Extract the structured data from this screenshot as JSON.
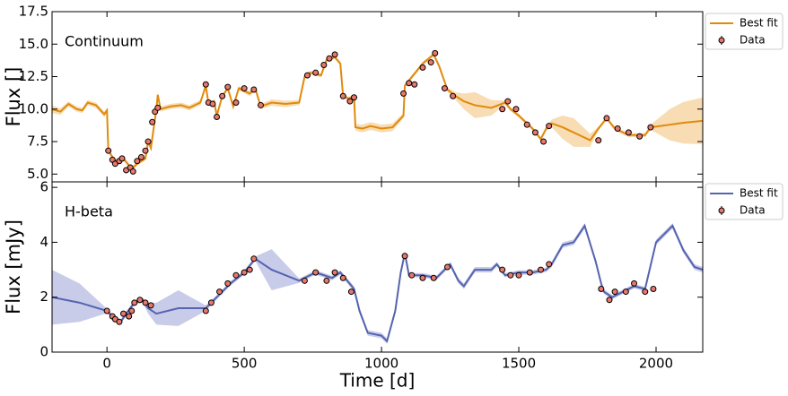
{
  "chart_data": [
    {
      "type": "line",
      "annotation": "Continuum",
      "ylabel": "Flux []",
      "ylim": [
        4.4,
        17.5
      ],
      "yticks": [
        {
          "value": 5.0,
          "label": "5.0"
        },
        7.5,
        {
          "value": 10.0,
          "label": "10.0"
        },
        12.5,
        {
          "value": 15.0,
          "label": "15.0"
        },
        17.5
      ],
      "xlim": [
        -200,
        2170
      ],
      "legend": "outside right",
      "series": [
        {
          "name": "Best fit",
          "color": "#e08a0b",
          "band_color": "#f5c98a",
          "x": [
            -200,
            -170,
            -140,
            -110,
            -90,
            -70,
            -40,
            -10,
            0,
            5,
            30,
            60,
            90,
            110,
            140,
            150,
            160,
            170,
            180,
            185,
            195,
            230,
            270,
            300,
            340,
            360,
            370,
            390,
            400,
            420,
            440,
            460,
            480,
            520,
            540,
            560,
            600,
            650,
            700,
            720,
            740,
            780,
            800,
            830,
            850,
            860,
            880,
            900,
            905,
            930,
            960,
            1000,
            1040,
            1080,
            1085,
            1100,
            1150,
            1190,
            1210,
            1240,
            1270,
            1300,
            1340,
            1400,
            1450,
            1470,
            1500,
            1550,
            1580,
            1600,
            1620,
            1660,
            1700,
            1760,
            1790,
            1820,
            1850,
            1900,
            1960,
            1980,
            2050,
            2100,
            2170
          ],
          "values": [
            10.0,
            9.8,
            10.4,
            10.0,
            9.9,
            10.5,
            10.3,
            9.6,
            9.9,
            6.8,
            6.0,
            6.2,
            5.4,
            5.8,
            6.2,
            7.5,
            7.0,
            8.5,
            10.0,
            11.1,
            10.0,
            10.2,
            10.3,
            10.1,
            10.5,
            11.8,
            10.4,
            10.6,
            9.5,
            11.0,
            11.6,
            10.2,
            11.6,
            11.2,
            11.6,
            10.2,
            10.5,
            10.4,
            10.5,
            12.5,
            12.8,
            12.6,
            13.8,
            14.0,
            13.5,
            11.0,
            10.8,
            11.0,
            8.6,
            8.5,
            8.7,
            8.5,
            8.6,
            9.5,
            11.8,
            12.2,
            13.5,
            14.2,
            13.3,
            11.5,
            11.0,
            10.6,
            10.3,
            10.1,
            10.5,
            10.0,
            9.5,
            8.5,
            7.7,
            8.5,
            8.9,
            8.6,
            8.2,
            7.6,
            8.5,
            9.3,
            8.5,
            8.0,
            8.0,
            8.6,
            8.8,
            8.95,
            9.1
          ],
          "errors": [
            0.3,
            0.25,
            0.2,
            0.2,
            0.2,
            0.2,
            0.2,
            0.2,
            0.2,
            0.15,
            0.15,
            0.15,
            0.15,
            0.15,
            0.15,
            0.15,
            0.15,
            0.2,
            0.2,
            0.2,
            0.2,
            0.2,
            0.2,
            0.2,
            0.2,
            0.15,
            0.15,
            0.15,
            0.15,
            0.15,
            0.15,
            0.15,
            0.15,
            0.2,
            0.2,
            0.2,
            0.25,
            0.25,
            0.2,
            0.15,
            0.15,
            0.15,
            0.15,
            0.15,
            0.15,
            0.15,
            0.15,
            0.15,
            0.25,
            0.3,
            0.3,
            0.3,
            0.3,
            0.2,
            0.15,
            0.15,
            0.15,
            0.15,
            0.15,
            0.15,
            0.3,
            0.6,
            1.0,
            0.6,
            0.15,
            0.15,
            0.15,
            0.15,
            0.15,
            0.15,
            0.3,
            0.9,
            1.1,
            0.5,
            0.15,
            0.15,
            0.15,
            0.15,
            0.15,
            0.2,
            1.2,
            1.6,
            1.8
          ]
        },
        {
          "name": "Data",
          "color": "#e8786c",
          "x": [
            5,
            20,
            30,
            45,
            55,
            70,
            85,
            95,
            110,
            125,
            140,
            150,
            165,
            175,
            185,
            360,
            370,
            385,
            400,
            420,
            440,
            470,
            500,
            535,
            560,
            730,
            760,
            790,
            810,
            830,
            860,
            885,
            900,
            1080,
            1100,
            1120,
            1150,
            1180,
            1195,
            1230,
            1260,
            1440,
            1460,
            1490,
            1530,
            1560,
            1590,
            1610,
            1790,
            1820,
            1860,
            1900,
            1940,
            1980
          ],
          "values": [
            6.8,
            6.1,
            5.8,
            6.0,
            6.2,
            5.3,
            5.5,
            5.2,
            6.0,
            6.3,
            6.8,
            7.5,
            9.0,
            9.8,
            10.1,
            11.9,
            10.5,
            10.4,
            9.4,
            11.0,
            11.7,
            10.5,
            11.6,
            11.5,
            10.3,
            12.6,
            12.8,
            13.4,
            13.9,
            14.2,
            11.0,
            10.6,
            10.9,
            11.2,
            12.0,
            11.9,
            13.2,
            13.6,
            14.3,
            11.6,
            11.0,
            10.0,
            10.6,
            10.0,
            8.8,
            8.2,
            7.5,
            8.7,
            7.6,
            9.3,
            8.5,
            8.2,
            7.9,
            8.6
          ]
        }
      ]
    },
    {
      "type": "line",
      "annotation": "H-beta",
      "ylabel": "Flux [mJy]",
      "xlabel": "Time [d]",
      "ylim": [
        0,
        6.2
      ],
      "yticks": [
        0,
        2,
        4,
        6
      ],
      "xlim": [
        -200,
        2170
      ],
      "xticks": [
        0,
        500,
        1000,
        1500,
        2000
      ],
      "legend": "outside right",
      "series": [
        {
          "name": "Best fit",
          "color": "#5563b0",
          "band_color": "#aab0dd",
          "x": [
            -200,
            -100,
            0,
            30,
            50,
            70,
            100,
            130,
            150,
            180,
            260,
            360,
            400,
            450,
            500,
            540,
            600,
            700,
            760,
            820,
            850,
            900,
            920,
            950,
            1000,
            1020,
            1050,
            1070,
            1085,
            1100,
            1150,
            1200,
            1250,
            1280,
            1300,
            1340,
            1400,
            1420,
            1450,
            1500,
            1550,
            1600,
            1620,
            1660,
            1700,
            1740,
            1780,
            1800,
            1810,
            1840,
            1880,
            1920,
            1960,
            2000,
            2060,
            2100,
            2140,
            2170
          ],
          "values": [
            2.0,
            1.8,
            1.5,
            1.2,
            1.1,
            1.4,
            1.8,
            1.9,
            1.6,
            1.4,
            1.6,
            1.6,
            2.0,
            2.5,
            2.9,
            3.4,
            3.0,
            2.6,
            2.9,
            2.7,
            2.9,
            2.3,
            1.5,
            0.7,
            0.6,
            0.4,
            1.5,
            2.9,
            3.6,
            2.8,
            2.8,
            2.7,
            3.2,
            2.6,
            2.4,
            3.0,
            3.0,
            3.2,
            2.8,
            2.9,
            2.9,
            3.0,
            3.2,
            3.9,
            4.0,
            4.6,
            3.3,
            2.5,
            2.2,
            2.0,
            2.2,
            2.4,
            2.3,
            4.0,
            4.6,
            3.7,
            3.1,
            3.0
          ],
          "errors": [
            1.0,
            0.7,
            0.08,
            0.08,
            0.08,
            0.08,
            0.08,
            0.08,
            0.2,
            0.4,
            0.65,
            0.1,
            0.08,
            0.08,
            0.08,
            0.08,
            0.75,
            0.08,
            0.08,
            0.08,
            0.08,
            0.1,
            0.1,
            0.1,
            0.1,
            0.1,
            0.1,
            0.1,
            0.08,
            0.08,
            0.08,
            0.08,
            0.08,
            0.1,
            0.1,
            0.1,
            0.1,
            0.08,
            0.08,
            0.08,
            0.08,
            0.08,
            0.1,
            0.1,
            0.1,
            0.1,
            0.1,
            0.08,
            0.08,
            0.08,
            0.08,
            0.08,
            0.08,
            0.1,
            0.1,
            0.1,
            0.1,
            0.1
          ]
        },
        {
          "name": "Data",
          "color": "#e8786c",
          "x": [
            0,
            20,
            30,
            45,
            60,
            80,
            90,
            100,
            120,
            140,
            160,
            360,
            380,
            410,
            440,
            470,
            500,
            520,
            535,
            720,
            760,
            800,
            830,
            860,
            890,
            1085,
            1110,
            1150,
            1190,
            1240,
            1440,
            1470,
            1500,
            1540,
            1580,
            1610,
            1800,
            1830,
            1850,
            1890,
            1920,
            1960,
            1990
          ],
          "values": [
            1.5,
            1.3,
            1.2,
            1.1,
            1.4,
            1.3,
            1.5,
            1.8,
            1.9,
            1.8,
            1.7,
            1.5,
            1.8,
            2.2,
            2.5,
            2.8,
            2.9,
            3.0,
            3.4,
            2.6,
            2.9,
            2.6,
            2.9,
            2.7,
            2.2,
            3.5,
            2.8,
            2.7,
            2.7,
            3.1,
            3.0,
            2.8,
            2.8,
            2.9,
            3.0,
            3.2,
            2.3,
            1.9,
            2.2,
            2.2,
            2.5,
            2.2,
            2.3
          ]
        }
      ]
    }
  ]
}
